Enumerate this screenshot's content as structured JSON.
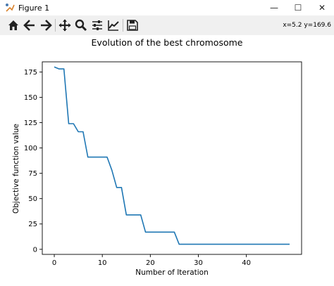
{
  "window": {
    "title": "Figure 1",
    "controls": {
      "minimize": "—",
      "maximize": "☐",
      "close": "✕"
    }
  },
  "toolbar": {
    "tools": [
      "home-icon",
      "back-icon",
      "forward-icon",
      "pan-icon",
      "zoom-icon",
      "subplots-icon",
      "edit-axes-icon",
      "save-icon"
    ],
    "coords": "x=5.2 y=169.6"
  },
  "chart_data": {
    "type": "line",
    "title": "Evolution of the best chromosome",
    "xlabel": "Number of Iteration",
    "ylabel": "Objective function value",
    "xlim": [
      -2.5,
      51.5
    ],
    "ylim": [
      -5,
      185
    ],
    "xticks": [
      0,
      10,
      20,
      30,
      40
    ],
    "yticks": [
      0,
      25,
      50,
      75,
      100,
      125,
      150,
      175
    ],
    "grid": false,
    "color": "#1f77b4",
    "series": [
      {
        "x": [
          0,
          1,
          2,
          3,
          4,
          5,
          6,
          7,
          8,
          9,
          10,
          11,
          12,
          13,
          14,
          15,
          16,
          17,
          18,
          19,
          20,
          21,
          22,
          23,
          24,
          25,
          26,
          27,
          28,
          29,
          30,
          31,
          32,
          33,
          34,
          35,
          36,
          37,
          38,
          39,
          40,
          41,
          42,
          43,
          44,
          45,
          46,
          47,
          48,
          49
        ],
        "values": [
          180,
          178,
          178,
          124,
          124,
          116,
          116,
          91,
          91,
          91,
          91,
          91,
          78,
          61,
          61,
          34,
          34,
          34,
          34,
          17,
          17,
          17,
          17,
          17,
          17,
          17,
          5,
          5,
          5,
          5,
          5,
          5,
          5,
          5,
          5,
          5,
          5,
          5,
          5,
          5,
          5,
          5,
          5,
          5,
          5,
          5,
          5,
          5,
          5,
          5
        ]
      }
    ]
  }
}
